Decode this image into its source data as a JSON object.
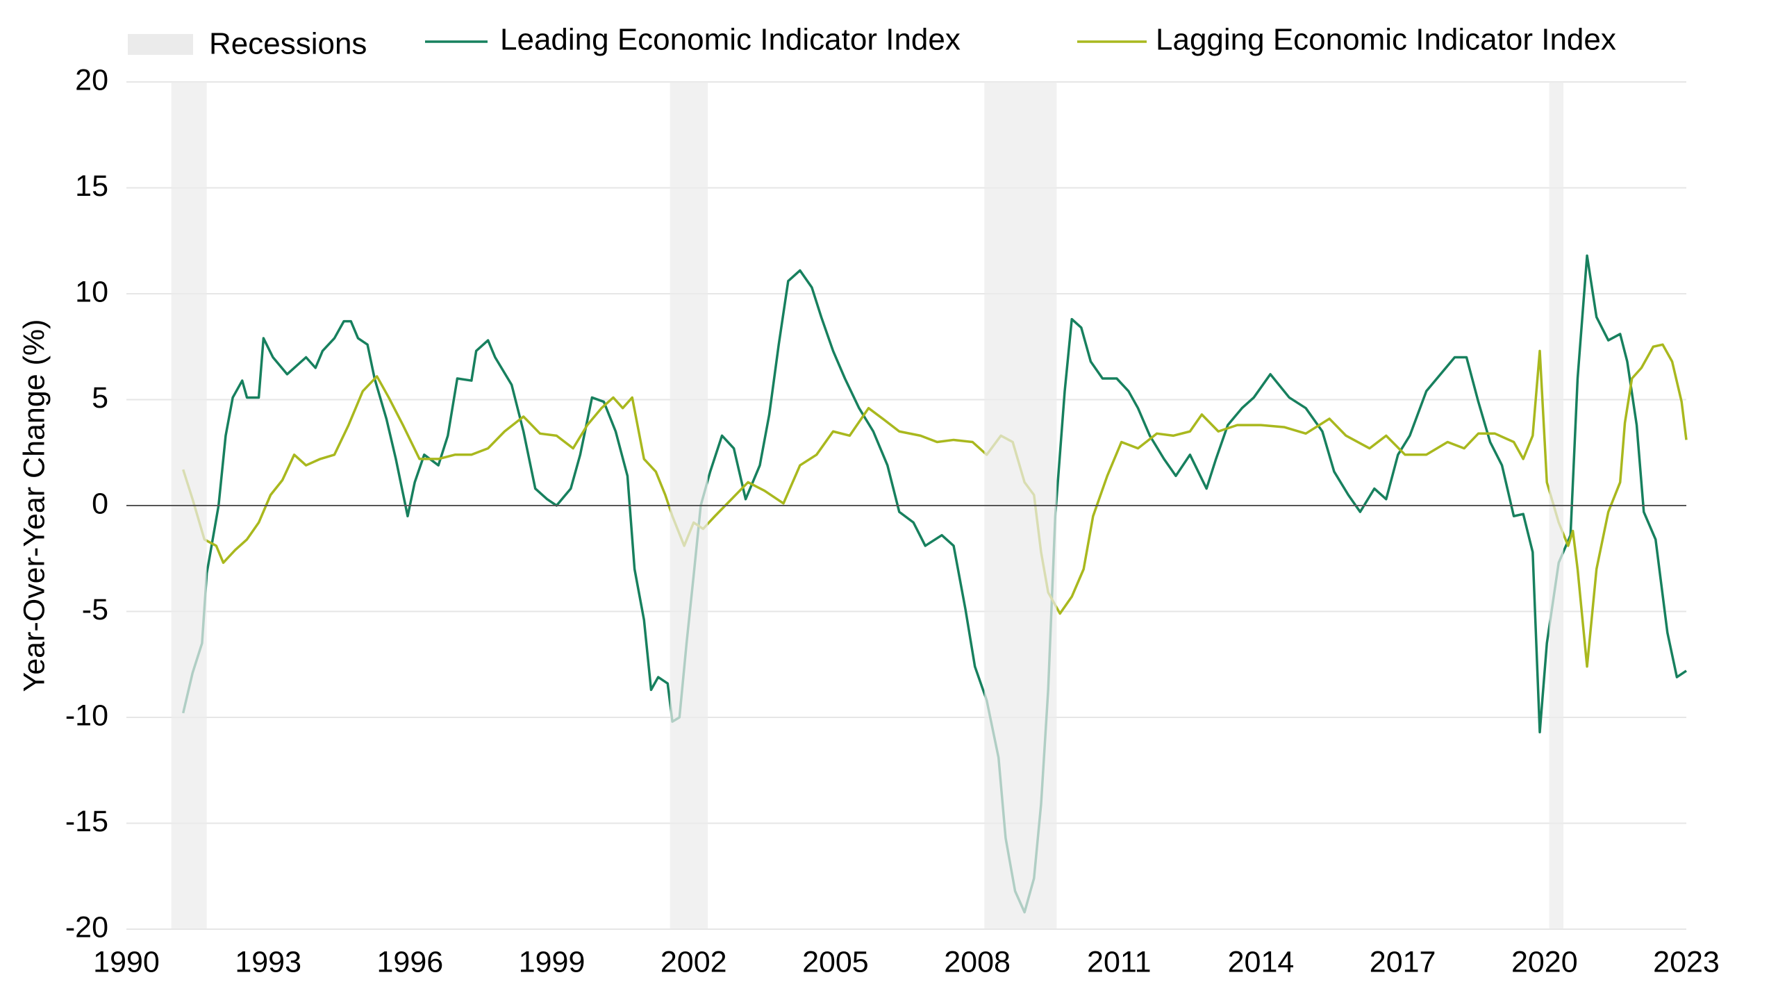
{
  "chart_data": {
    "type": "line",
    "ylabel": "Year-Over-Year Change (%)",
    "xlim": [
      1990,
      2023
    ],
    "xticks": [
      1990,
      1993,
      1996,
      1999,
      2002,
      2005,
      2008,
      2011,
      2014,
      2017,
      2020,
      2023
    ],
    "ylim": [
      -20,
      20
    ],
    "yticks": [
      -20,
      -15,
      -10,
      -5,
      0,
      5,
      10,
      15,
      20
    ],
    "grid": true,
    "legend": "top",
    "recessions": {
      "name": "Recessions",
      "color": "#ebebeb",
      "ranges": [
        [
          1990.95,
          1991.7
        ],
        [
          2001.5,
          2002.3
        ],
        [
          2008.15,
          2009.68
        ],
        [
          2020.1,
          2020.4
        ]
      ]
    },
    "series": [
      {
        "name": "Leading Economic Indicator Index",
        "color": "#17805e",
        "x": [
          1991.2,
          1991.4,
          1991.6,
          1991.7,
          1991.95,
          1992.1,
          1992.25,
          1992.45,
          1992.55,
          1992.8,
          1992.9,
          1993.1,
          1993.4,
          1993.8,
          1994.0,
          1994.15,
          1994.4,
          1994.6,
          1994.75,
          1994.9,
          1995.1,
          1995.25,
          1995.5,
          1995.7,
          1995.95,
          1996.1,
          1996.3,
          1996.6,
          1996.8,
          1997.0,
          1997.3,
          1997.4,
          1997.65,
          1997.8,
          1998.15,
          1998.4,
          1998.65,
          1998.9,
          1999.1,
          1999.4,
          1999.6,
          1999.85,
          2000.1,
          2000.35,
          2000.6,
          2000.75,
          2000.95,
          2001.1,
          2001.25,
          2001.45,
          2001.55,
          2001.7,
          2001.85,
          2002.0,
          2002.15,
          2002.35,
          2002.6,
          2002.85,
          2003.1,
          2003.4,
          2003.6,
          2003.8,
          2004.0,
          2004.25,
          2004.5,
          2004.7,
          2004.95,
          2005.2,
          2005.5,
          2005.8,
          2006.1,
          2006.35,
          2006.65,
          2006.9,
          2007.25,
          2007.5,
          2007.75,
          2007.95,
          2008.2,
          2008.45,
          2008.6,
          2008.8,
          2009.0,
          2009.2,
          2009.35,
          2009.5,
          2009.65,
          2009.85,
          2010.0,
          2010.2,
          2010.4,
          2010.65,
          2010.95,
          2011.2,
          2011.4,
          2011.65,
          2011.95,
          2012.2,
          2012.5,
          2012.85,
          2013.05,
          2013.3,
          2013.6,
          2013.85,
          2014.2,
          2014.6,
          2014.95,
          2015.3,
          2015.55,
          2015.85,
          2016.1,
          2016.4,
          2016.65,
          2016.9,
          2017.15,
          2017.5,
          2017.8,
          2018.1,
          2018.35,
          2018.6,
          2018.85,
          2019.1,
          2019.35,
          2019.55,
          2019.75,
          2019.9,
          2020.05,
          2020.3,
          2020.55,
          2020.7,
          2020.9,
          2021.1,
          2021.35,
          2021.6,
          2021.75,
          2021.95,
          2022.1,
          2022.35,
          2022.6,
          2022.8,
          2023.0
        ],
        "values": [
          -9.8,
          -7.9,
          -6.5,
          -3.2,
          0,
          3.3,
          5.1,
          5.9,
          5.1,
          5.1,
          7.9,
          7.0,
          6.2,
          7.0,
          6.5,
          7.3,
          7.9,
          8.7,
          8.7,
          7.9,
          7.6,
          6.0,
          4.1,
          2.2,
          -0.5,
          1.1,
          2.4,
          1.9,
          3.3,
          6.0,
          5.9,
          7.3,
          7.8,
          7.0,
          5.7,
          3.5,
          0.8,
          0.3,
          0,
          0.8,
          2.4,
          5.1,
          4.9,
          3.5,
          1.4,
          -3.0,
          -5.4,
          -8.7,
          -8.1,
          -8.4,
          -10.2,
          -10.0,
          -6.5,
          -3.3,
          0,
          1.6,
          3.3,
          2.7,
          0.3,
          1.9,
          4.3,
          7.6,
          10.6,
          11.1,
          10.3,
          8.9,
          7.3,
          6.0,
          4.6,
          3.5,
          1.9,
          -0.3,
          -0.8,
          -1.9,
          -1.4,
          -1.9,
          -4.9,
          -7.6,
          -9.2,
          -11.9,
          -15.7,
          -18.2,
          -19.2,
          -17.6,
          -14.1,
          -8.7,
          -0.5,
          5.4,
          8.8,
          8.4,
          6.8,
          6.0,
          6.0,
          5.4,
          4.6,
          3.3,
          2.2,
          1.4,
          2.4,
          0.8,
          2.2,
          3.8,
          4.6,
          5.1,
          6.2,
          5.1,
          4.6,
          3.5,
          1.6,
          0.5,
          -0.3,
          0.8,
          0.3,
          2.4,
          3.3,
          5.4,
          6.2,
          7.0,
          7.0,
          4.9,
          3.0,
          1.9,
          -0.5,
          -0.4,
          -2.2,
          -10.7,
          -6.5,
          -2.7,
          -1.4,
          6.0,
          11.8,
          8.9,
          7.8,
          8.1,
          6.8,
          3.8,
          -0.3,
          -1.6,
          -6.0,
          -8.1,
          -7.8
        ]
      },
      {
        "name": "Lagging Economic Indicator Index",
        "color": "#a9b81e",
        "x": [
          1991.2,
          1991.4,
          1991.65,
          1991.9,
          1992.05,
          1992.3,
          1992.55,
          1992.8,
          1993.05,
          1993.3,
          1993.55,
          1993.8,
          1994.1,
          1994.4,
          1994.7,
          1995.0,
          1995.3,
          1995.55,
          1995.85,
          1996.2,
          1996.6,
          1996.95,
          1997.3,
          1997.65,
          1998.0,
          1998.4,
          1998.75,
          1999.1,
          1999.45,
          1999.75,
          2000.05,
          2000.3,
          2000.5,
          2000.7,
          2000.95,
          2001.2,
          2001.4,
          2001.55,
          2001.8,
          2002.0,
          2002.2,
          2002.45,
          2002.8,
          2003.15,
          2003.5,
          2003.9,
          2004.25,
          2004.6,
          2004.95,
          2005.3,
          2005.7,
          2006.0,
          2006.35,
          2006.8,
          2007.15,
          2007.5,
          2007.9,
          2008.2,
          2008.5,
          2008.75,
          2009.0,
          2009.2,
          2009.35,
          2009.5,
          2009.75,
          2010.0,
          2010.25,
          2010.45,
          2010.75,
          2011.05,
          2011.4,
          2011.8,
          2012.15,
          2012.5,
          2012.75,
          2013.1,
          2013.5,
          2014.0,
          2014.5,
          2014.95,
          2015.45,
          2015.8,
          2016.3,
          2016.65,
          2017.05,
          2017.5,
          2017.95,
          2018.3,
          2018.6,
          2018.95,
          2019.35,
          2019.55,
          2019.75,
          2019.9,
          2020.05,
          2020.3,
          2020.5,
          2020.6,
          2020.7,
          2020.9,
          2021.1,
          2021.35,
          2021.6,
          2021.7,
          2021.85,
          2022.05,
          2022.3,
          2022.5,
          2022.7,
          2022.9,
          2023.0
        ],
        "values": [
          1.7,
          0.3,
          -1.6,
          -1.9,
          -2.7,
          -2.1,
          -1.6,
          -0.8,
          0.5,
          1.2,
          2.4,
          1.9,
          2.2,
          2.4,
          3.8,
          5.4,
          6.1,
          5.1,
          3.8,
          2.2,
          2.2,
          2.4,
          2.4,
          2.7,
          3.5,
          4.2,
          3.4,
          3.3,
          2.7,
          3.8,
          4.6,
          5.1,
          4.6,
          5.1,
          2.2,
          1.6,
          0.5,
          -0.5,
          -1.9,
          -0.8,
          -1.1,
          -0.5,
          0.3,
          1.1,
          0.7,
          0.1,
          1.9,
          2.4,
          3.5,
          3.3,
          4.6,
          4.1,
          3.5,
          3.3,
          3.0,
          3.1,
          3.0,
          2.4,
          3.3,
          3.0,
          1.1,
          0.5,
          -2.2,
          -4.1,
          -5.1,
          -4.3,
          -3.0,
          -0.5,
          1.4,
          3.0,
          2.7,
          3.4,
          3.3,
          3.5,
          4.3,
          3.5,
          3.8,
          3.8,
          3.7,
          3.4,
          4.1,
          3.3,
          2.7,
          3.3,
          2.4,
          2.4,
          3.0,
          2.7,
          3.4,
          3.4,
          3.0,
          2.2,
          3.3,
          7.3,
          1.1,
          -0.8,
          -1.9,
          -1.2,
          -3.0,
          -7.6,
          -3.0,
          -0.3,
          1.1,
          3.9,
          6.0,
          6.5,
          7.5,
          7.6,
          6.8,
          4.9,
          3.1
        ]
      }
    ]
  }
}
